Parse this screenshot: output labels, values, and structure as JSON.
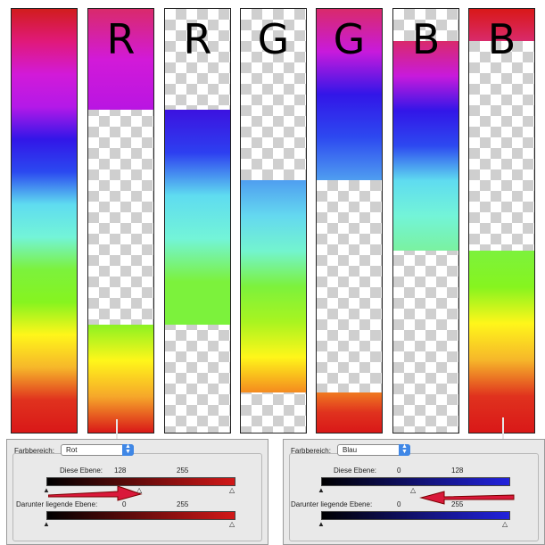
{
  "strips": [
    {
      "label": "",
      "segments": [
        {
          "top": 0,
          "bottom": 1,
          "gradient": [
            "#d11d1d",
            "#e0197a",
            "#d21ad8",
            "#b419e8",
            "#3216e8",
            "#2b49f0",
            "#5fdcf0",
            "#73f4d8",
            "#7cf23c",
            "#86f41f",
            "#fff61a",
            "#f6b72a",
            "#e0321e",
            "#d91818"
          ]
        }
      ]
    },
    {
      "label": "R",
      "segments": [
        {
          "top": 0,
          "bottom": 0.237,
          "gradient": [
            "#d92a6b",
            "#d21ad8",
            "#b915e2"
          ]
        },
        {
          "top": 0.745,
          "bottom": 1,
          "gradient": [
            "#8cf222",
            "#fff61a",
            "#f6a72a",
            "#d91818"
          ]
        }
      ]
    },
    {
      "label": "R",
      "segments": [
        {
          "top": 0.237,
          "bottom": 0.745,
          "gradient": [
            "#3c12e0",
            "#2d3ff0",
            "#5fdcf0",
            "#73f4d8",
            "#7cf23c",
            "#7cf23c"
          ]
        }
      ]
    },
    {
      "label": "G",
      "segments": [
        {
          "top": 0.405,
          "bottom": 0.905,
          "gradient": [
            "#4f9ef0",
            "#64d8f0",
            "#73f4cf",
            "#7cf23c",
            "#a8f420",
            "#fff61a",
            "#f48a1f"
          ]
        }
      ]
    },
    {
      "label": "G",
      "segments": [
        {
          "top": 0,
          "bottom": 0.405,
          "gradient": [
            "#d92a6b",
            "#c81adc",
            "#3216e8",
            "#2d49f0",
            "#4f9ef0"
          ]
        },
        {
          "top": 0.905,
          "bottom": 1,
          "gradient": [
            "#f07a20",
            "#e0321e",
            "#d91818"
          ]
        }
      ]
    },
    {
      "label": "B",
      "segments": [
        {
          "top": 0.075,
          "bottom": 0.57,
          "gradient": [
            "#d92a6b",
            "#c81adc",
            "#3216e8",
            "#2d49f0",
            "#5fdcf0",
            "#73f4d8",
            "#7af2a0"
          ]
        }
      ]
    },
    {
      "label": "B",
      "segments": [
        {
          "top": 0,
          "bottom": 0.075,
          "gradient": [
            "#d91818",
            "#d92a6b"
          ]
        },
        {
          "top": 0.57,
          "bottom": 1,
          "gradient": [
            "#7cf23c",
            "#86f41f",
            "#fff61a",
            "#f6b72a",
            "#e0321e",
            "#d91818"
          ]
        }
      ]
    }
  ],
  "panels": [
    {
      "farbbereich_label": "Farbbereich:",
      "selected": "Rot",
      "this_layer_label": "Diese Ebene:",
      "this_values": [
        "128",
        "255"
      ],
      "under_layer_label": "Darunter liegende Ebene:",
      "under_values": [
        "0",
        "255"
      ],
      "accent": "#d21818",
      "arrow_direction": "right"
    },
    {
      "farbbereich_label": "Farbbereich:",
      "selected": "Blau",
      "this_layer_label": "Diese Ebene:",
      "this_values": [
        "0",
        "128"
      ],
      "under_layer_label": "Darunter liegende Ebene:",
      "under_values": [
        "0",
        "255"
      ],
      "accent": "#2222dd",
      "arrow_direction": "left"
    }
  ],
  "icons": {
    "select_arrow": "chevron-updown-icon",
    "slider_handle": "triangle-slider-icon",
    "pointer": "red-arrow-icon"
  }
}
